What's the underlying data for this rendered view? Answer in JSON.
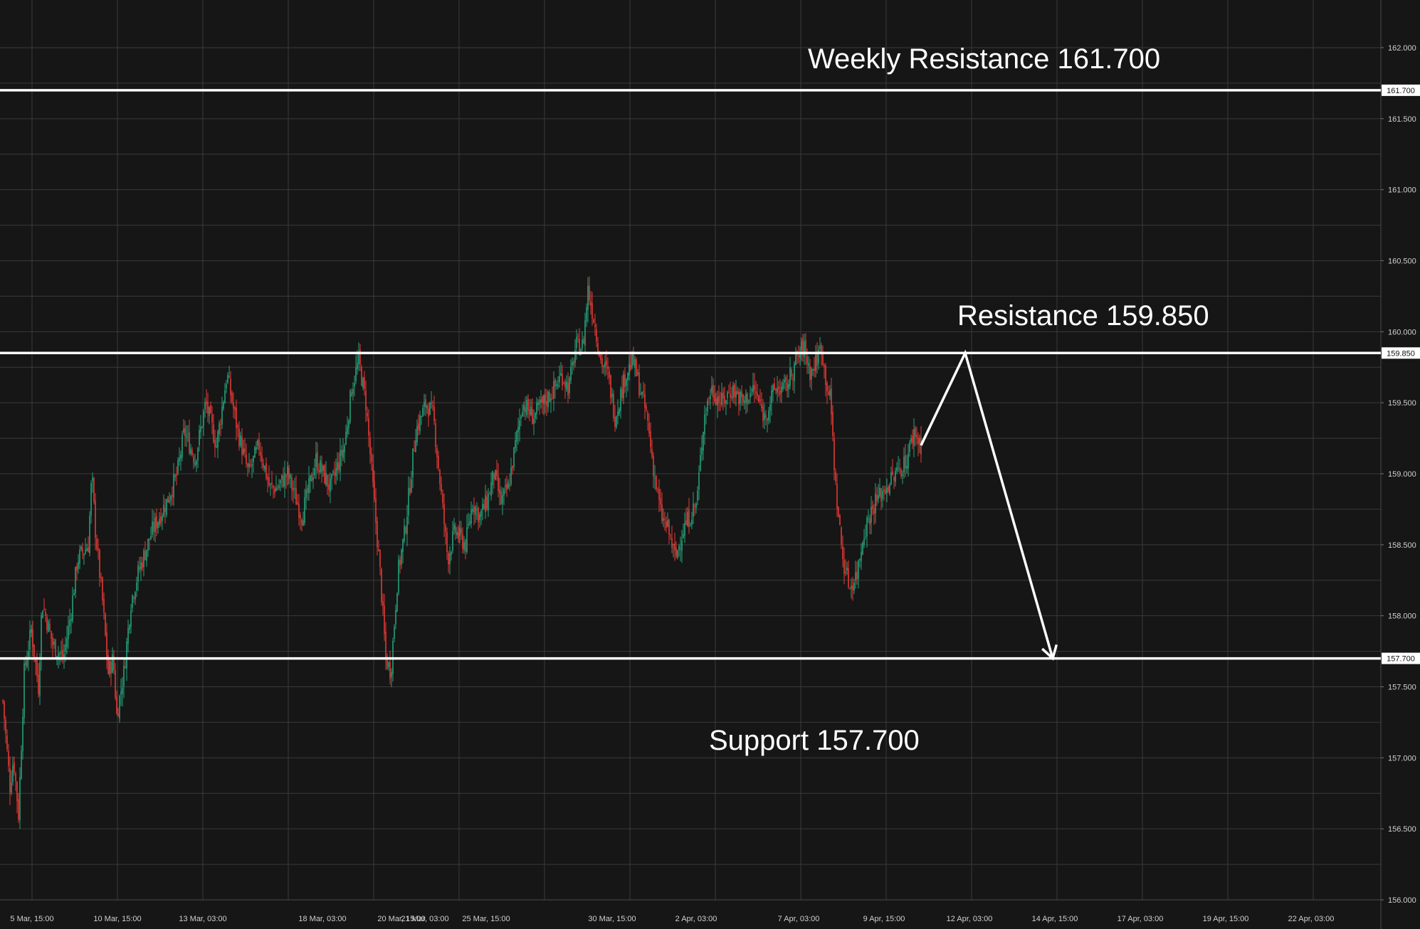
{
  "chart_data": {
    "type": "candlestick",
    "y_range": [
      156.0,
      162.0
    ],
    "y_ticks": [
      "162.000",
      "161.500",
      "161.000",
      "160.500",
      "160.000",
      "159.500",
      "159.000",
      "158.500",
      "158.000",
      "157.500",
      "157.000",
      "156.500",
      "156.000"
    ],
    "x_ticks": [
      "5 Mar, 15:00",
      "10 Mar, 15:00",
      "13 Mar, 03:00",
      "18 Mar, 03:00",
      "20 Mar, 15:00",
      "21 Mar, 03:00",
      "25 Mar, 15:00",
      "30 Mar, 15:00",
      "2 Apr, 03:00",
      "7 Apr, 03:00",
      "9 Apr, 15:00",
      "12 Apr, 03:00",
      "14 Apr, 15:00",
      "17 Apr, 03:00",
      "19 Apr, 15:00",
      "22 Apr, 03:00"
    ],
    "grid": true,
    "colors": {
      "background": "#161616",
      "grid": "#3a3a3a",
      "up": "#26a17b",
      "down": "#e53935",
      "level": "#ffffff"
    },
    "levels": [
      {
        "value": 161.7,
        "label": "161.700",
        "annotation": "Weekly Resistance 161.700"
      },
      {
        "value": 159.85,
        "label": "159.850",
        "annotation": "Resistance 159.850"
      },
      {
        "value": 157.7,
        "label": "157.700",
        "annotation": "Support 157.700"
      }
    ],
    "price_path": [
      [
        0,
        157.4
      ],
      [
        10,
        156.8
      ],
      [
        15,
        157.0
      ],
      [
        22,
        156.6
      ],
      [
        30,
        157.6
      ],
      [
        40,
        157.9
      ],
      [
        50,
        157.5
      ],
      [
        55,
        158.1
      ],
      [
        70,
        157.8
      ],
      [
        85,
        157.7
      ],
      [
        95,
        158.0
      ],
      [
        105,
        158.4
      ],
      [
        120,
        158.5
      ],
      [
        125,
        159.0
      ],
      [
        130,
        158.6
      ],
      [
        140,
        158.1
      ],
      [
        148,
        157.6
      ],
      [
        155,
        157.7
      ],
      [
        160,
        157.3
      ],
      [
        170,
        157.6
      ],
      [
        180,
        158.1
      ],
      [
        190,
        158.3
      ],
      [
        210,
        158.6
      ],
      [
        230,
        158.8
      ],
      [
        245,
        159.0
      ],
      [
        255,
        159.3
      ],
      [
        270,
        159.1
      ],
      [
        285,
        159.5
      ],
      [
        300,
        159.2
      ],
      [
        315,
        159.7
      ],
      [
        330,
        159.3
      ],
      [
        345,
        159.0
      ],
      [
        360,
        159.2
      ],
      [
        375,
        158.9
      ],
      [
        385,
        158.9
      ],
      [
        400,
        159.0
      ],
      [
        420,
        158.7
      ],
      [
        440,
        159.1
      ],
      [
        460,
        158.9
      ],
      [
        480,
        159.2
      ],
      [
        490,
        159.6
      ],
      [
        500,
        159.8
      ],
      [
        510,
        159.5
      ],
      [
        520,
        158.9
      ],
      [
        530,
        158.3
      ],
      [
        538,
        157.7
      ],
      [
        545,
        157.6
      ],
      [
        555,
        158.3
      ],
      [
        565,
        158.6
      ],
      [
        580,
        159.3
      ],
      [
        595,
        159.5
      ],
      [
        605,
        159.4
      ],
      [
        615,
        158.9
      ],
      [
        625,
        158.4
      ],
      [
        635,
        158.6
      ],
      [
        650,
        158.5
      ],
      [
        660,
        158.8
      ],
      [
        670,
        158.7
      ],
      [
        680,
        158.8
      ],
      [
        690,
        159.0
      ],
      [
        700,
        158.8
      ],
      [
        710,
        158.9
      ],
      [
        720,
        159.2
      ],
      [
        730,
        159.5
      ],
      [
        745,
        159.4
      ],
      [
        760,
        159.5
      ],
      [
        775,
        159.6
      ],
      [
        785,
        159.7
      ],
      [
        795,
        159.6
      ],
      [
        805,
        159.9
      ],
      [
        815,
        159.9
      ],
      [
        822,
        160.3
      ],
      [
        830,
        160.1
      ],
      [
        840,
        159.8
      ],
      [
        850,
        159.7
      ],
      [
        860,
        159.4
      ],
      [
        875,
        159.7
      ],
      [
        885,
        159.8
      ],
      [
        895,
        159.6
      ],
      [
        905,
        159.4
      ],
      [
        915,
        159.0
      ],
      [
        925,
        158.7
      ],
      [
        935,
        158.6
      ],
      [
        945,
        158.4
      ],
      [
        955,
        158.6
      ],
      [
        965,
        158.7
      ],
      [
        975,
        158.8
      ],
      [
        985,
        159.4
      ],
      [
        995,
        159.6
      ],
      [
        1010,
        159.5
      ],
      [
        1025,
        159.6
      ],
      [
        1040,
        159.5
      ],
      [
        1055,
        159.6
      ],
      [
        1070,
        159.4
      ],
      [
        1085,
        159.6
      ],
      [
        1100,
        159.6
      ],
      [
        1115,
        159.8
      ],
      [
        1125,
        159.9
      ],
      [
        1135,
        159.7
      ],
      [
        1150,
        159.9
      ],
      [
        1155,
        159.7
      ],
      [
        1163,
        159.5
      ],
      [
        1170,
        158.9
      ],
      [
        1180,
        158.4
      ],
      [
        1190,
        158.2
      ],
      [
        1200,
        158.3
      ],
      [
        1210,
        158.6
      ],
      [
        1225,
        158.8
      ],
      [
        1240,
        158.9
      ],
      [
        1255,
        159.0
      ],
      [
        1270,
        159.1
      ],
      [
        1280,
        159.3
      ],
      [
        1290,
        159.2
      ]
    ],
    "projection_path": [
      [
        1290,
        159.2
      ],
      [
        1352,
        159.85
      ],
      [
        1475,
        157.7
      ]
    ]
  }
}
